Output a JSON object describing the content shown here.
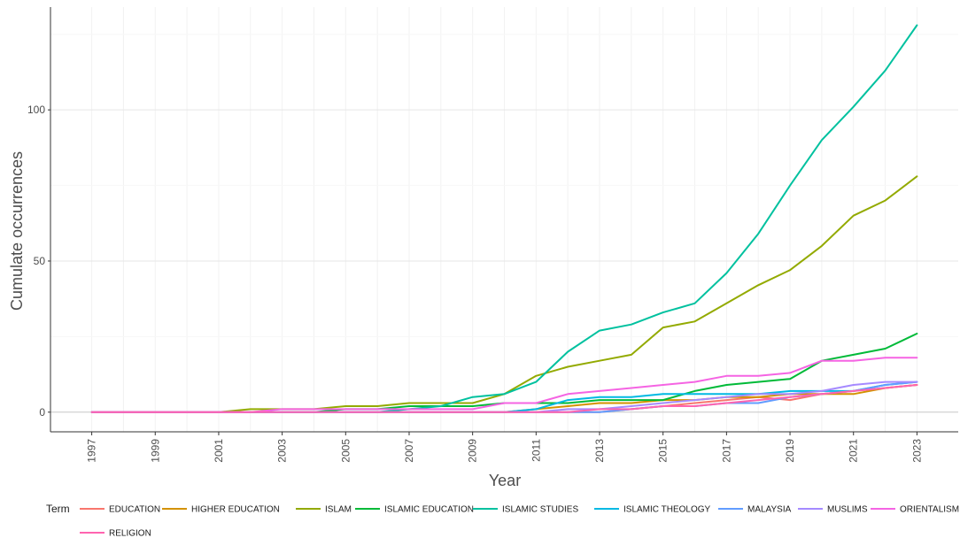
{
  "chart_data": {
    "type": "line",
    "title": "",
    "xlabel": "Year",
    "ylabel": "Cumulate occurrences",
    "x": [
      1997,
      1998,
      1999,
      2000,
      2001,
      2002,
      2003,
      2004,
      2005,
      2006,
      2007,
      2008,
      2009,
      2010,
      2011,
      2012,
      2013,
      2014,
      2015,
      2016,
      2017,
      2018,
      2019,
      2020,
      2021,
      2022,
      2023
    ],
    "x_ticks": [
      "1997",
      "1999",
      "2001",
      "2003",
      "2005",
      "2007",
      "2009",
      "2011",
      "2013",
      "2015",
      "2017",
      "2019",
      "2021",
      "2023"
    ],
    "y_ticks": [
      "0",
      "50",
      "100"
    ],
    "xlim": [
      1995.7,
      2024.3
    ],
    "ylim": [
      -6.5,
      134
    ],
    "grid": true,
    "legend_title": "Term",
    "legend_position": "bottom",
    "series": [
      {
        "name": "EDUCATION",
        "color": "#F8766D",
        "values": [
          0,
          0,
          0,
          0,
          0,
          0,
          0,
          0,
          0,
          0,
          0,
          0,
          0,
          0,
          0,
          0,
          0,
          1,
          2,
          3,
          4,
          5,
          4,
          6,
          7,
          8,
          9
        ]
      },
      {
        "name": "HIGHER EDUCATION",
        "color": "#D39200",
        "values": [
          0,
          0,
          0,
          0,
          0,
          0,
          0,
          0,
          0,
          0,
          0,
          0,
          0,
          0,
          1,
          2,
          3,
          3,
          4,
          4,
          5,
          5,
          6,
          6,
          6,
          8,
          9
        ]
      },
      {
        "name": "ISLAM",
        "color": "#93AA00",
        "values": [
          0,
          0,
          0,
          0,
          0,
          1,
          1,
          1,
          2,
          2,
          3,
          3,
          3,
          6,
          12,
          15,
          17,
          19,
          28,
          30,
          36,
          42,
          47,
          55,
          65,
          70,
          78
        ]
      },
      {
        "name": "ISLAMIC EDUCATION",
        "color": "#00BA38",
        "values": [
          0,
          0,
          0,
          0,
          0,
          0,
          0,
          0,
          1,
          1,
          2,
          2,
          2,
          3,
          3,
          3,
          4,
          4,
          4,
          7,
          9,
          10,
          11,
          17,
          19,
          21,
          26
        ]
      },
      {
        "name": "ISLAMIC STUDIES",
        "color": "#00C19F",
        "values": [
          0,
          0,
          0,
          0,
          0,
          0,
          0,
          0,
          0,
          0,
          1,
          2,
          5,
          6,
          10,
          20,
          27,
          29,
          33,
          36,
          46,
          59,
          75,
          90,
          101,
          113,
          128
        ]
      },
      {
        "name": "ISLAMIC THEOLOGY",
        "color": "#00B9E3",
        "values": [
          0,
          0,
          0,
          0,
          0,
          0,
          0,
          0,
          0,
          0,
          0,
          0,
          0,
          0,
          1,
          4,
          5,
          5,
          6,
          6,
          6,
          6,
          7,
          7,
          7,
          9,
          10
        ]
      },
      {
        "name": "MALAYSIA",
        "color": "#619CFF",
        "values": [
          0,
          0,
          0,
          0,
          0,
          0,
          0,
          0,
          0,
          0,
          0,
          0,
          0,
          0,
          0,
          0,
          0,
          1,
          2,
          2,
          3,
          3,
          5,
          6,
          7,
          9,
          10
        ]
      },
      {
        "name": "MUSLIMS",
        "color": "#A58AFF",
        "values": [
          0,
          0,
          0,
          0,
          0,
          0,
          0,
          0,
          0,
          0,
          0,
          0,
          0,
          0,
          0,
          1,
          1,
          2,
          3,
          4,
          5,
          6,
          6,
          7,
          9,
          10,
          10
        ]
      },
      {
        "name": "ORIENTALISM",
        "color": "#F564E3",
        "values": [
          0,
          0,
          0,
          0,
          0,
          0,
          1,
          1,
          1,
          1,
          1,
          1,
          1,
          3,
          3,
          6,
          7,
          8,
          9,
          10,
          12,
          12,
          13,
          17,
          17,
          18,
          18
        ]
      },
      {
        "name": "RELIGION",
        "color": "#FF64B0",
        "values": [
          0,
          0,
          0,
          0,
          0,
          0,
          0,
          0,
          0,
          0,
          0,
          0,
          0,
          0,
          0,
          0,
          1,
          1,
          2,
          2,
          3,
          4,
          5,
          6,
          7,
          8,
          9
        ]
      }
    ]
  }
}
